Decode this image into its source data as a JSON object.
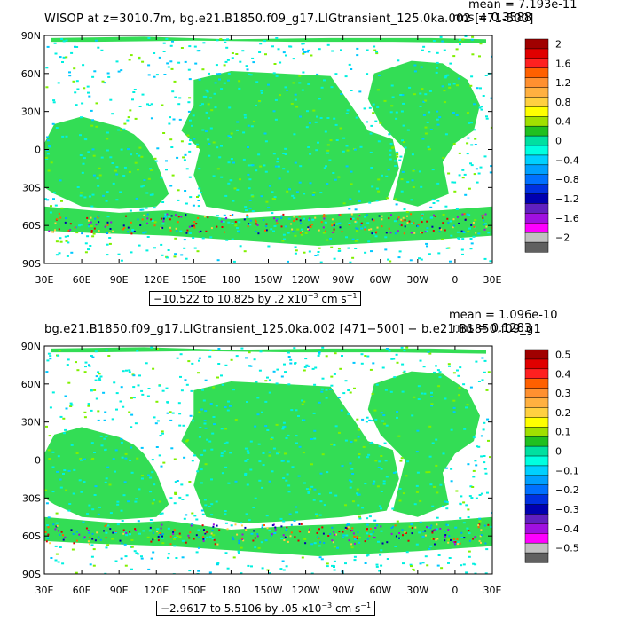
{
  "panels": [
    {
      "title": "WISOP at z=3010.7m, bg.e21.B1850.f09_g17.LIGtransient_125.0ka.002 [471-500]",
      "mean": "mean = 7.193e-11",
      "rms": "rms = 0.3588",
      "range_text": "−10.522 to 10.825 by .2 x10",
      "range_exp": "−3",
      "range_units": " cm s",
      "range_units_exp": "−1",
      "colorbar_labels": [
        "2",
        "1.6",
        "1.2",
        "0.8",
        "0.4",
        "0",
        "−0.4",
        "−0.8",
        "−1.2",
        "−1.6",
        "−2"
      ]
    },
    {
      "title": "bg.e21.B1850.f09_g17.LIGtransient_125.0ka.002 [471−500] − b.e21.B1850.f09_g1",
      "mean": "mean = 1.096e-10",
      "rms": "rms = 0.1283",
      "range_text": "−2.9617 to 5.5106 by .05 x10",
      "range_exp": "−3",
      "range_units": " cm s",
      "range_units_exp": "−1",
      "colorbar_labels": [
        "0.5",
        "0.4",
        "0.3",
        "0.2",
        "0.1",
        "0",
        "−0.1",
        "−0.2",
        "−0.3",
        "−0.4",
        "−0.5"
      ]
    }
  ],
  "chart_data": [
    {
      "type": "heatmap",
      "title": "WISOP at z=3010.7m, bg.e21.B1850.f09_g17.LIGtransient_125.0ka.002 [471-500]",
      "x_ticks": [
        "30E",
        "60E",
        "90E",
        "120E",
        "150E",
        "180",
        "150W",
        "120W",
        "90W",
        "60W",
        "30W",
        "0",
        "30E"
      ],
      "y_ticks": [
        "90N",
        "60N",
        "30N",
        "0",
        "30S",
        "60S",
        "90S"
      ],
      "colorbar_range": [
        -2,
        2
      ],
      "data_range": [
        -10.522,
        10.825
      ],
      "contour_interval": 0.2,
      "units": "x10^-3 cm s^-1"
    },
    {
      "type": "heatmap",
      "title": "bg.e21.B1850.f09_g17.LIGtransient_125.0ka.002 [471−500] − b.e21.B1850.f09_g1",
      "x_ticks": [
        "30E",
        "60E",
        "90E",
        "120E",
        "150E",
        "180",
        "150W",
        "120W",
        "90W",
        "60W",
        "30W",
        "0",
        "30E"
      ],
      "y_ticks": [
        "90N",
        "60N",
        "30N",
        "0",
        "30S",
        "60S",
        "90S"
      ],
      "colorbar_range": [
        -0.5,
        0.5
      ],
      "data_range": [
        -2.9617,
        5.5106
      ],
      "contour_interval": 0.05,
      "units": "x10^-3 cm s^-1"
    }
  ],
  "colors": {
    "colorbar": [
      "#a00000",
      "#e00000",
      "#ff2020",
      "#ff6000",
      "#ff9030",
      "#ffb040",
      "#ffd040",
      "#ffff00",
      "#a0e000",
      "#20c020",
      "#00e0a0",
      "#00ffe0",
      "#00d0ff",
      "#00a0ff",
      "#0070ff",
      "#0030e0",
      "#0000b0",
      "#6020c0",
      "#a010e0",
      "#ff00ff",
      "#c0c0c0",
      "#606060"
    ],
    "ocean_green": "#33dd55",
    "ocean_cyan": "#00f0e0",
    "land": "#ffffff"
  }
}
